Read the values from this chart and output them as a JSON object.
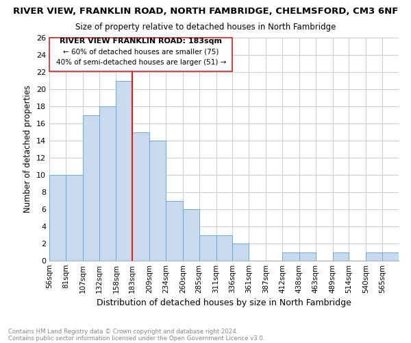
{
  "title": "RIVER VIEW, FRANKLIN ROAD, NORTH FAMBRIDGE, CHELMSFORD, CM3 6NF",
  "subtitle": "Size of property relative to detached houses in North Fambridge",
  "xlabel": "Distribution of detached houses by size in North Fambridge",
  "ylabel": "Number of detached properties",
  "bar_color": "#c8daf0",
  "bar_edge_color": "#6aaad4",
  "vline_x": 183,
  "vline_color": "#cc2222",
  "categories": [
    "56sqm",
    "81sqm",
    "107sqm",
    "132sqm",
    "158sqm",
    "183sqm",
    "209sqm",
    "234sqm",
    "260sqm",
    "285sqm",
    "311sqm",
    "336sqm",
    "361sqm",
    "387sqm",
    "412sqm",
    "438sqm",
    "463sqm",
    "489sqm",
    "514sqm",
    "540sqm",
    "565sqm"
  ],
  "bin_edges": [
    56,
    81,
    107,
    132,
    158,
    183,
    209,
    234,
    260,
    285,
    311,
    336,
    361,
    387,
    412,
    438,
    463,
    489,
    514,
    540,
    565
  ],
  "bin_width": 25,
  "values": [
    10,
    10,
    17,
    18,
    21,
    15,
    14,
    7,
    6,
    3,
    3,
    2,
    0,
    0,
    1,
    1,
    0,
    1,
    0,
    1,
    1
  ],
  "ylim": [
    0,
    26
  ],
  "yticks": [
    0,
    2,
    4,
    6,
    8,
    10,
    12,
    14,
    16,
    18,
    20,
    22,
    24,
    26
  ],
  "annotation_line1": "RIVER VIEW FRANKLIN ROAD: 183sqm",
  "annotation_line2": "← 60% of detached houses are smaller (75)",
  "annotation_line3": "40% of semi-detached houses are larger (51) →",
  "footer_line1": "Contains HM Land Registry data © Crown copyright and database right 2024.",
  "footer_line2": "Contains public sector information licensed under the Open Government Licence v3.0.",
  "background_color": "#ffffff",
  "grid_color": "#cccccc"
}
